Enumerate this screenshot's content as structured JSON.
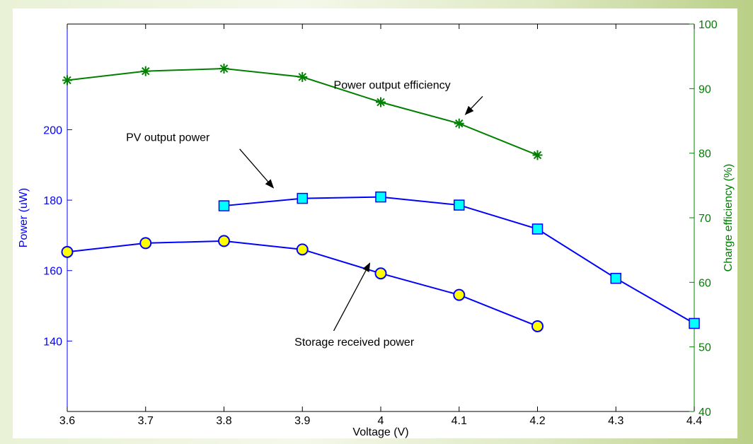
{
  "chart_data": {
    "type": "line",
    "x": [
      3.6,
      3.7,
      3.8,
      3.9,
      4.0,
      4.1,
      4.2,
      4.3,
      4.4
    ],
    "xlabel": "Voltage (V)",
    "xlim": [
      3.6,
      4.4
    ],
    "xticks": [
      "3.6",
      "3.7",
      "3.8",
      "3.9",
      "4",
      "4.1",
      "4.2",
      "4.3",
      "4.4"
    ],
    "left_axis": {
      "label": "Power (uW)",
      "ylim": [
        120,
        230
      ],
      "ticks": [
        "140",
        "160",
        "180",
        "200"
      ],
      "tick_values": [
        140,
        160,
        180,
        200
      ],
      "color": "#0000ff"
    },
    "right_axis": {
      "label": "Charge efficiency (%)",
      "ylim": [
        40,
        100
      ],
      "ticks": [
        "40",
        "50",
        "60",
        "70",
        "80",
        "90",
        "100"
      ],
      "tick_values": [
        40,
        50,
        60,
        70,
        80,
        90,
        100
      ],
      "color": "#008000"
    },
    "series": [
      {
        "axis": "right",
        "x": [
          3.6,
          3.7,
          3.8,
          3.9,
          4.0,
          4.1,
          4.2
        ],
        "values": [
          91.3,
          92.7,
          93.1,
          91.8,
          87.9,
          84.6,
          79.7
        ],
        "marker": "asterisk",
        "color": "#008000"
      },
      {
        "axis": "left",
        "x": [
          3.8,
          3.9,
          4.0,
          4.1,
          4.2,
          4.3,
          4.4
        ],
        "values": [
          178.4,
          180.5,
          180.9,
          178.6,
          171.8,
          157.8,
          145.0
        ],
        "marker": "square",
        "color": "#0000ff",
        "marker_fill": "#00ffff"
      },
      {
        "axis": "left",
        "x": [
          3.6,
          3.7,
          3.8,
          3.9,
          4.0,
          4.1,
          4.2
        ],
        "values": [
          165.3,
          167.8,
          168.4,
          166.0,
          159.2,
          153.1,
          144.2
        ],
        "marker": "circle",
        "color": "#0000ff",
        "marker_fill": "#ffff00"
      }
    ],
    "annotations": [
      {
        "text": "Power output efficiency",
        "tx": 3.94,
        "ty": 90.0,
        "ax": 4.13,
        "ay": 88.8,
        "bx": 4.108,
        "by": 86.0
      },
      {
        "text": "PV output power",
        "tx": 3.675,
        "ty": 196.8,
        "ax": 3.82,
        "ay": 194.5,
        "bx": 3.863,
        "by": 183.5
      },
      {
        "text": "Storage received power",
        "tx": 3.89,
        "ty": 138.7,
        "ax": 3.94,
        "ay": 142.9,
        "bx": 3.986,
        "by": 162.1
      }
    ]
  }
}
